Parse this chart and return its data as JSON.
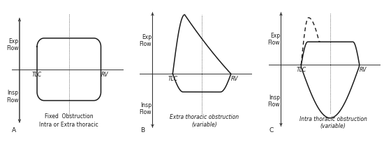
{
  "bg_color": "#ffffff",
  "panel_labels": [
    "A",
    "B",
    "C"
  ],
  "panel_titles_A": [
    "Fixed  Obstruction",
    "Intra or Extra thoracic"
  ],
  "panel_titles_B": [
    "Extra thoracic obstruction",
    "(variable)"
  ],
  "panel_titles_C": [
    "Intra thoracic obstruction",
    "(variable)"
  ],
  "exp_flow_label": "Exp\nFlow",
  "insp_flow_label": "Insp\nFlow",
  "tlc_label": "TLC",
  "rv_label": "RV",
  "line_color": "#1a1a1a",
  "dashed_color": "#1a1a1a",
  "axis_color": "#333333",
  "label_fontsize": 5.5,
  "title_fontsize": 5.5,
  "panel_label_fontsize": 6.5
}
